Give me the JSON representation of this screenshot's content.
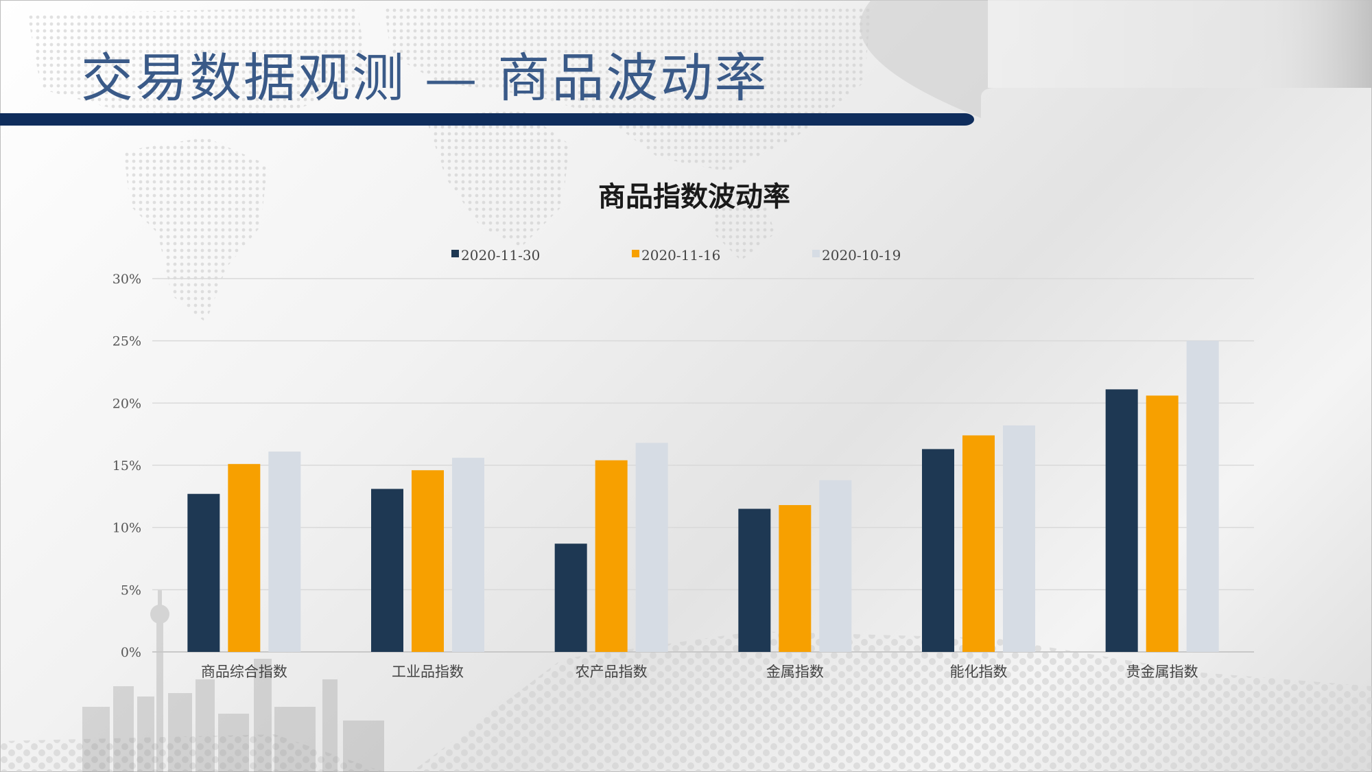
{
  "page": {
    "title": "交易数据观测 — 商品波动率"
  },
  "colors": {
    "accent": "#0f2d5c",
    "series": [
      "#1e3853",
      "#f7a000",
      "#d6dce4"
    ],
    "title": "#3a5a88"
  },
  "chart_data": {
    "type": "bar",
    "title": "商品指数波动率",
    "xlabel": "",
    "ylabel": "",
    "categories": [
      "商品综合指数",
      "工业品指数",
      "农产品指数",
      "金属指数",
      "能化指数",
      "贵金属指数"
    ],
    "series": [
      {
        "name": "2020-11-30",
        "values": [
          12.7,
          13.1,
          8.7,
          11.5,
          16.3,
          21.1
        ]
      },
      {
        "name": "2020-11-16",
        "values": [
          15.1,
          14.6,
          15.4,
          11.8,
          17.4,
          20.6
        ]
      },
      {
        "name": "2020-10-19",
        "values": [
          16.1,
          15.6,
          16.8,
          13.8,
          18.2,
          25.0
        ]
      }
    ],
    "ylim": [
      0,
      30
    ],
    "yticks": [
      "0%",
      "5%",
      "10%",
      "15%",
      "20%",
      "25%",
      "30%"
    ],
    "legend": "top",
    "grid": true
  }
}
